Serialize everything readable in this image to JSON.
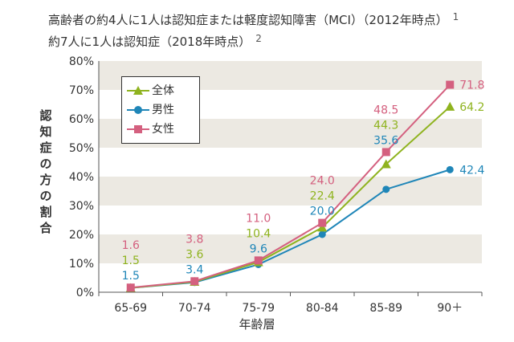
{
  "header": {
    "line1": "高齢者の約4人に1人は認知症または軽度認知障害（MCI）（2012年時点）",
    "line1_sup": "1",
    "line2": "約7人に1人は認知症（2018年時点）",
    "line2_sup": "2"
  },
  "chart_data": {
    "type": "line",
    "xlabel": "年齢層",
    "ylabel": "認知症の方の割合",
    "categories": [
      "65-69",
      "70-74",
      "75-79",
      "80-84",
      "85-89",
      "90＋"
    ],
    "y_ticks": [
      "0%",
      "10%",
      "20%",
      "30%",
      "40%",
      "50%",
      "60%",
      "70%",
      "80%"
    ],
    "ylim": [
      0,
      80
    ],
    "grid": "alternating horizontal bands",
    "legend_position": "top-left",
    "series": [
      {
        "name": "全体",
        "values": [
          1.5,
          3.6,
          10.4,
          22.4,
          44.3,
          64.2
        ],
        "labels": [
          "1.5",
          "3.6",
          "10.4",
          "22.4",
          "44.3",
          "64.2"
        ],
        "color": "#8fb31f",
        "marker": "triangle"
      },
      {
        "name": "男性",
        "values": [
          1.5,
          3.4,
          9.6,
          20.0,
          35.6,
          42.4
        ],
        "labels": [
          "1.5",
          "3.4",
          "9.6",
          "20.0",
          "35.6",
          "42.4"
        ],
        "color": "#1f86b8",
        "marker": "circle"
      },
      {
        "name": "女性",
        "values": [
          1.6,
          3.8,
          11.0,
          24.0,
          48.5,
          71.8
        ],
        "labels": [
          "1.6",
          "3.8",
          "11.0",
          "24.0",
          "48.5",
          "71.8"
        ],
        "color": "#d4607f",
        "marker": "square"
      }
    ]
  }
}
